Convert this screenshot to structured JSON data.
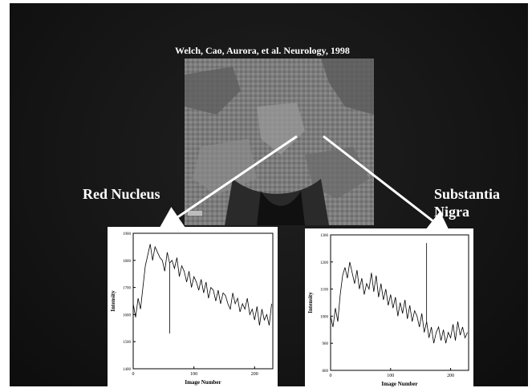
{
  "slide": {
    "citation": "Welch, Cao, Aurora, et al. Neurology, 1998",
    "label_left": "Red Nucleus",
    "label_right_line1": "Substantia",
    "label_right_line2": "Nigra"
  },
  "image": {
    "icon": "mri-brain-scan"
  },
  "chart_data": [
    {
      "type": "line",
      "title": "",
      "xlabel": "Image Number",
      "ylabel": "Intensity",
      "xlim": [
        0,
        230
      ],
      "ylim": [
        1400,
        1900
      ],
      "x_ticks": [
        "0",
        "100",
        "200"
      ],
      "y_ticks": [
        "1400",
        "1500",
        "1600",
        "1700",
        "1800",
        "1900"
      ],
      "series": [
        {
          "x": [
            0,
            4,
            8,
            12,
            16,
            20,
            24,
            28,
            32,
            36,
            40,
            44,
            48,
            52,
            56,
            60,
            64,
            68,
            72,
            76,
            80,
            84,
            88,
            92,
            96,
            100,
            104,
            108,
            112,
            116,
            120,
            124,
            128,
            132,
            136,
            140,
            144,
            148,
            152,
            156,
            160,
            164,
            168,
            172,
            176,
            180,
            184,
            188,
            192,
            196,
            200,
            204,
            208,
            212,
            216,
            220,
            224,
            228
          ],
          "y": [
            1640,
            1590,
            1660,
            1620,
            1700,
            1780,
            1820,
            1860,
            1800,
            1850,
            1830,
            1810,
            1800,
            1760,
            1830,
            1790,
            1800,
            1770,
            1810,
            1740,
            1780,
            1760,
            1720,
            1760,
            1700,
            1740,
            1720,
            1690,
            1730,
            1680,
            1720,
            1660,
            1700,
            1690,
            1650,
            1690,
            1640,
            1680,
            1670,
            1640,
            1620,
            1680,
            1640,
            1660,
            1610,
            1640,
            1620,
            1660,
            1600,
            1620,
            1580,
            1630,
            1560,
            1620,
            1580,
            1600,
            1560,
            1640
          ]
        }
      ],
      "spikes": [
        {
          "x": 60,
          "y": 1530
        }
      ]
    },
    {
      "type": "line",
      "title": "",
      "xlabel": "Image Number",
      "ylabel": "Intensity",
      "xlim": [
        0,
        230
      ],
      "ylim": [
        800,
        1300
      ],
      "x_ticks": [
        "0",
        "100",
        "200"
      ],
      "y_ticks": [
        "800",
        "900",
        "1000",
        "1100",
        "1200",
        "1300"
      ],
      "series": [
        {
          "x": [
            0,
            4,
            8,
            12,
            16,
            20,
            24,
            28,
            32,
            36,
            40,
            44,
            48,
            52,
            56,
            60,
            64,
            68,
            72,
            76,
            80,
            84,
            88,
            92,
            96,
            100,
            104,
            108,
            112,
            116,
            120,
            124,
            128,
            132,
            136,
            140,
            144,
            148,
            152,
            156,
            160,
            164,
            168,
            172,
            176,
            180,
            184,
            188,
            192,
            196,
            200,
            204,
            208,
            212,
            216,
            220,
            224,
            228
          ],
          "y": [
            1000,
            960,
            1030,
            980,
            1080,
            1150,
            1180,
            1140,
            1200,
            1160,
            1120,
            1170,
            1100,
            1140,
            1080,
            1120,
            1100,
            1160,
            1090,
            1150,
            1070,
            1120,
            1060,
            1100,
            1040,
            1080,
            1030,
            1070,
            1000,
            1050,
            1010,
            1060,
            990,
            1040,
            980,
            1020,
            1000,
            960,
            1010,
            940,
            980,
            920,
            960,
            900,
            940,
            960,
            910,
            950,
            900,
            940,
            920,
            970,
            910,
            980,
            930,
            960,
            920,
            940
          ]
        }
      ],
      "spikes": [
        {
          "x": 160,
          "y": 1270
        }
      ]
    }
  ]
}
